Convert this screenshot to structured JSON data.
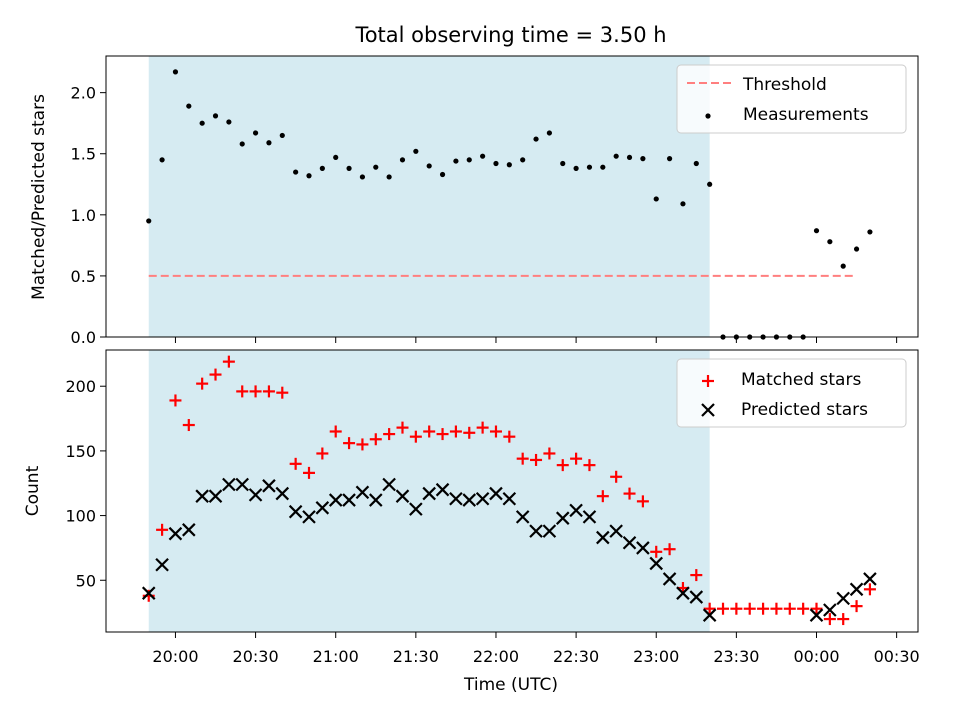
{
  "chart_data": [
    {
      "type": "scatter",
      "title": "Total observing time = 3.50 h",
      "xlabel": "",
      "ylabel": "Matched/Predicted stars",
      "ylim": [
        0,
        2.3
      ],
      "yticks": [
        "0.0",
        "0.5",
        "1.0",
        "1.5",
        "2.0"
      ],
      "shaded_span": [
        "19:50",
        "23:20"
      ],
      "shade_color": "#add8e6",
      "legend_position": "top-right",
      "threshold": {
        "name": "Threshold",
        "value": 0.5,
        "x_start": "19:50",
        "x_end": "00:15",
        "color": "#ff7f7f"
      },
      "series": [
        {
          "name": "Measurements",
          "marker": "dot",
          "color": "#000000",
          "x": [
            "19:50",
            "19:55",
            "20:00",
            "20:05",
            "20:10",
            "20:15",
            "20:20",
            "20:25",
            "20:30",
            "20:35",
            "20:40",
            "20:45",
            "20:50",
            "20:55",
            "21:00",
            "21:05",
            "21:10",
            "21:15",
            "21:20",
            "21:25",
            "21:30",
            "21:35",
            "21:40",
            "21:45",
            "21:50",
            "21:55",
            "22:00",
            "22:05",
            "22:10",
            "22:15",
            "22:20",
            "22:25",
            "22:30",
            "22:35",
            "22:40",
            "22:45",
            "22:50",
            "22:55",
            "23:00",
            "23:05",
            "23:10",
            "23:15",
            "23:20",
            "23:25",
            "23:30",
            "23:35",
            "23:40",
            "23:45",
            "23:50",
            "23:55",
            "00:00",
            "00:05",
            "00:10",
            "00:15",
            "00:20"
          ],
          "y": [
            0.95,
            1.45,
            2.17,
            1.89,
            1.75,
            1.81,
            1.76,
            1.58,
            1.67,
            1.59,
            1.65,
            1.35,
            1.32,
            1.38,
            1.47,
            1.38,
            1.31,
            1.39,
            1.31,
            1.45,
            1.52,
            1.4,
            1.33,
            1.44,
            1.45,
            1.48,
            1.42,
            1.41,
            1.45,
            1.62,
            1.67,
            1.42,
            1.38,
            1.39,
            1.39,
            1.48,
            1.47,
            1.46,
            1.13,
            1.46,
            1.09,
            1.42,
            1.25,
            0,
            0,
            0,
            0,
            0,
            0,
            0,
            0.87,
            0.78,
            0.58,
            0.72,
            0.86
          ]
        }
      ]
    },
    {
      "type": "scatter",
      "title": "",
      "xlabel": "Time (UTC)",
      "ylabel": "Count",
      "ylim": [
        10,
        228
      ],
      "yticks": [
        "50",
        "100",
        "150",
        "200"
      ],
      "xticks": [
        "20:00",
        "20:30",
        "21:00",
        "21:30",
        "22:00",
        "22:30",
        "23:00",
        "23:30",
        "00:00",
        "00:30"
      ],
      "x_range": [
        "19:34",
        "00:38"
      ],
      "shaded_span": [
        "19:50",
        "23:20"
      ],
      "shade_color": "#add8e6",
      "legend_position": "top-right",
      "series": [
        {
          "name": "Matched stars",
          "marker": "plus",
          "color": "#ff0000",
          "x": [
            "19:50",
            "19:55",
            "20:00",
            "20:05",
            "20:10",
            "20:15",
            "20:20",
            "20:25",
            "20:30",
            "20:35",
            "20:40",
            "20:45",
            "20:50",
            "20:55",
            "21:00",
            "21:05",
            "21:10",
            "21:15",
            "21:20",
            "21:25",
            "21:30",
            "21:35",
            "21:40",
            "21:45",
            "21:50",
            "21:55",
            "22:00",
            "22:05",
            "22:10",
            "22:15",
            "22:20",
            "22:25",
            "22:30",
            "22:35",
            "22:40",
            "22:45",
            "22:50",
            "22:55",
            "23:00",
            "23:05",
            "23:10",
            "23:15",
            "23:20",
            "23:25",
            "23:30",
            "23:35",
            "23:40",
            "23:45",
            "23:50",
            "23:55",
            "00:00",
            "00:05",
            "00:10",
            "00:15",
            "00:20"
          ],
          "y": [
            38,
            89,
            189,
            170,
            202,
            209,
            219,
            196,
            196,
            196,
            195,
            140,
            133,
            148,
            165,
            156,
            155,
            159,
            163,
            168,
            161,
            165,
            163,
            165,
            164,
            168,
            165,
            161,
            144,
            143,
            148,
            139,
            144,
            139,
            115,
            130,
            117,
            111,
            72,
            74,
            44,
            54,
            28,
            28,
            28,
            28,
            28,
            28,
            28,
            28,
            28,
            20,
            20,
            30,
            43
          ]
        },
        {
          "name": "Predicted stars",
          "marker": "x",
          "color": "#000000",
          "x": [
            "19:50",
            "19:55",
            "20:00",
            "20:05",
            "20:10",
            "20:15",
            "20:20",
            "20:25",
            "20:30",
            "20:35",
            "20:40",
            "20:45",
            "20:50",
            "20:55",
            "21:00",
            "21:05",
            "21:10",
            "21:15",
            "21:20",
            "21:25",
            "21:30",
            "21:35",
            "21:40",
            "21:45",
            "21:50",
            "21:55",
            "22:00",
            "22:05",
            "22:10",
            "22:15",
            "22:20",
            "22:25",
            "22:30",
            "22:35",
            "22:40",
            "22:45",
            "22:50",
            "22:55",
            "23:00",
            "23:05",
            "23:10",
            "23:15",
            "23:20",
            "00:00",
            "00:05",
            "00:10",
            "00:15",
            "00:20"
          ],
          "y": [
            40,
            62,
            86,
            89,
            115,
            115,
            124,
            124,
            116,
            123,
            117,
            103,
            99,
            106,
            112,
            112,
            118,
            112,
            124,
            115,
            105,
            117,
            120,
            113,
            112,
            113,
            117,
            113,
            99,
            88,
            88,
            98,
            104,
            99,
            83,
            88,
            79,
            75,
            63,
            51,
            40,
            37,
            23,
            23,
            27,
            36,
            43,
            51
          ]
        }
      ]
    }
  ]
}
